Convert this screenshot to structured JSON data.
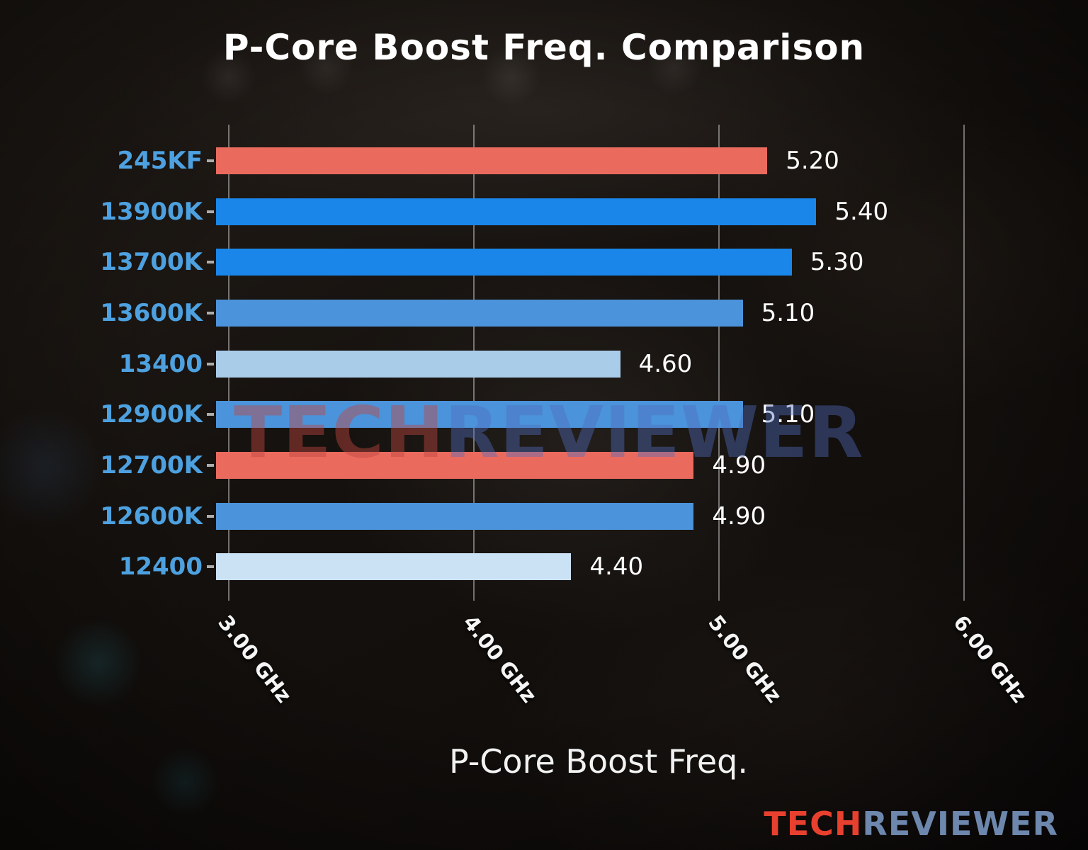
{
  "title": "P-Core Boost Freq. Comparison",
  "xlabel": "P-Core Boost Freq.",
  "watermark": {
    "part1": "TECH",
    "part2": "REVIEWER"
  },
  "logo": {
    "part1": "TECH",
    "part2": "REVIEWER"
  },
  "colors": {
    "category_label": "#4da1e0",
    "value_label": "#ffffff",
    "gridline": "rgba(210,210,210,0.5)",
    "logo_red": "#e8402e",
    "logo_blue": "#6d87ad"
  },
  "chart_data": {
    "type": "bar",
    "orientation": "horizontal",
    "title": "P-Core Boost Freq. Comparison",
    "xlabel": "P-Core Boost Freq.",
    "categories": [
      "245KF",
      "13900K",
      "13700K",
      "13600K",
      "13400",
      "12900K",
      "12700K",
      "12600K",
      "12400"
    ],
    "values": [
      5.2,
      5.4,
      5.3,
      5.1,
      4.6,
      5.1,
      4.9,
      4.9,
      4.4
    ],
    "value_labels": [
      "5.20",
      "5.40",
      "5.30",
      "5.10",
      "4.60",
      "5.10",
      "4.90",
      "4.90",
      "4.40"
    ],
    "bar_colors": [
      "#ea6a5e",
      "#1a86ea",
      "#1a86ea",
      "#4b93da",
      "#a9cce9",
      "#4b93da",
      "#ea6a5e",
      "#4b93da",
      "#cbe1f4"
    ],
    "unit": "GHz",
    "x_ticks": [
      "3.00 GHz",
      "4.00 GHz",
      "5.00 GHz",
      "6.00 GHz"
    ],
    "x_tick_values": [
      3.0,
      4.0,
      5.0,
      6.0
    ],
    "xlim": [
      2.95,
      6.2
    ],
    "grid": true,
    "legend": false
  }
}
